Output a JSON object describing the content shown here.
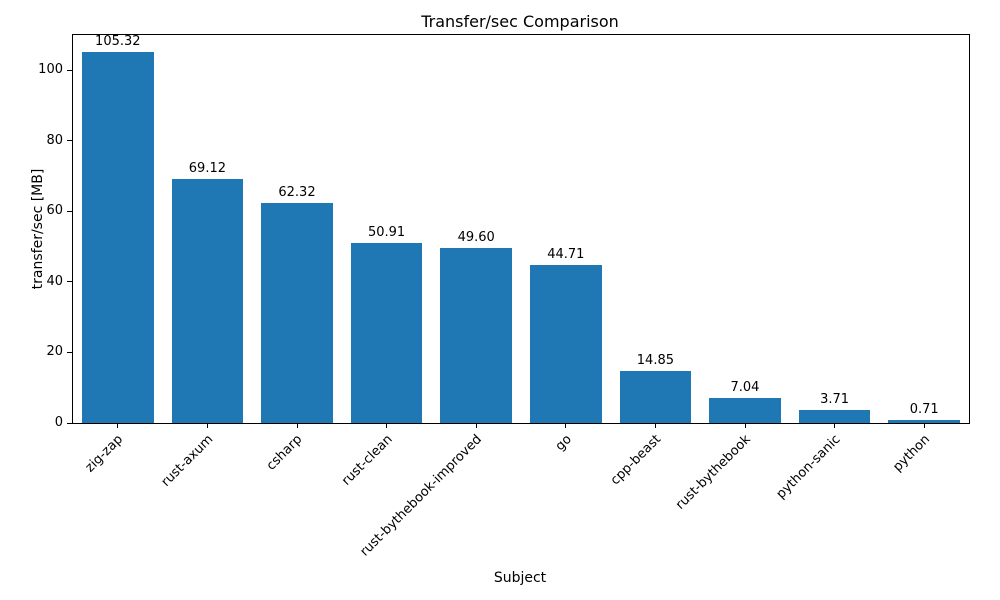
{
  "chart_data": {
    "type": "bar",
    "title": "Transfer/sec Comparison",
    "xlabel": "Subject",
    "ylabel": "transfer/sec [MB]",
    "categories": [
      "zig-zap",
      "rust-axum",
      "csharp",
      "rust-clean",
      "rust-bythebook-improved",
      "go",
      "cpp-beast",
      "rust-bythebook",
      "python-sanic",
      "python"
    ],
    "values": [
      105.32,
      69.12,
      62.32,
      50.91,
      49.6,
      44.71,
      14.85,
      7.04,
      3.71,
      0.71
    ],
    "bar_labels": [
      "105.32",
      "69.12",
      "62.32",
      "50.91",
      "49.60",
      "44.71",
      "14.85",
      "7.04",
      "3.71",
      "0.71"
    ],
    "ylim": [
      0,
      110
    ],
    "yticks": [
      0,
      20,
      40,
      60,
      80,
      100
    ],
    "bar_color": "#1f77b4",
    "grid": false,
    "legend": "none"
  }
}
